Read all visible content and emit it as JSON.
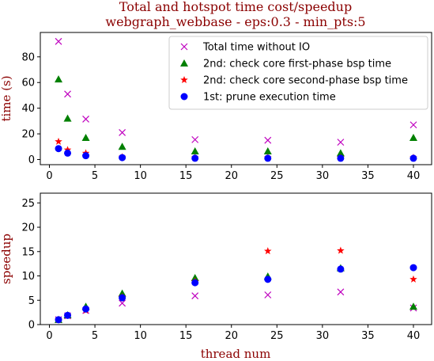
{
  "chart_data": {
    "type": "scatter",
    "title_lines": [
      "Total and hotspot time cost/speedup",
      "webgraph_webbase - eps:0.3 - min_pts:5"
    ],
    "xlabel": "thread num",
    "xlim": [
      -1,
      42
    ],
    "xticks": [
      0,
      5,
      10,
      15,
      20,
      25,
      30,
      35,
      40
    ],
    "x": [
      1,
      2,
      4,
      8,
      16,
      24,
      32,
      40
    ],
    "series": [
      {
        "name": "Total time without IO",
        "marker": "x",
        "color": "#bf00bf"
      },
      {
        "name": "2nd: check core first-phase bsp time",
        "marker": "triangle",
        "color": "#008000"
      },
      {
        "name": "2nd: check core second-phase bsp time",
        "marker": "star",
        "color": "#ff0000"
      },
      {
        "name": "1st: prune execution time",
        "marker": "circle",
        "color": "#0000ff"
      }
    ],
    "panels": [
      {
        "ylabel": "time (s)",
        "ylim": [
          -4,
          99
        ],
        "yticks": [
          0,
          20,
          40,
          60,
          80
        ],
        "legend": "top-right",
        "values": [
          [
            92,
            51,
            31.5,
            21,
            15.5,
            15,
            13.5,
            27
          ],
          [
            62.5,
            32,
            17,
            10,
            6.5,
            6.5,
            5,
            17
          ],
          [
            14,
            7.5,
            5,
            2,
            1.5,
            1.5,
            1.5,
            1.5
          ],
          [
            8.5,
            5,
            3,
            1.5,
            1,
            1,
            1,
            1
          ]
        ]
      },
      {
        "ylabel": "speedup",
        "ylim": [
          0,
          27
        ],
        "yticks": [
          0,
          5,
          10,
          15,
          20,
          25
        ],
        "values": [
          [
            1,
            1.8,
            2.9,
            4.4,
            5.9,
            6.1,
            6.7,
            3.4
          ],
          [
            1,
            1.95,
            3.7,
            6.4,
            9.6,
            9.9,
            11.6,
            3.7
          ],
          [
            1,
            1.85,
            2.9,
            5.7,
            8.9,
            15.1,
            15.2,
            9.3
          ],
          [
            1,
            1.9,
            3.2,
            5.5,
            8.6,
            9.3,
            11.4,
            11.7
          ]
        ]
      }
    ]
  }
}
